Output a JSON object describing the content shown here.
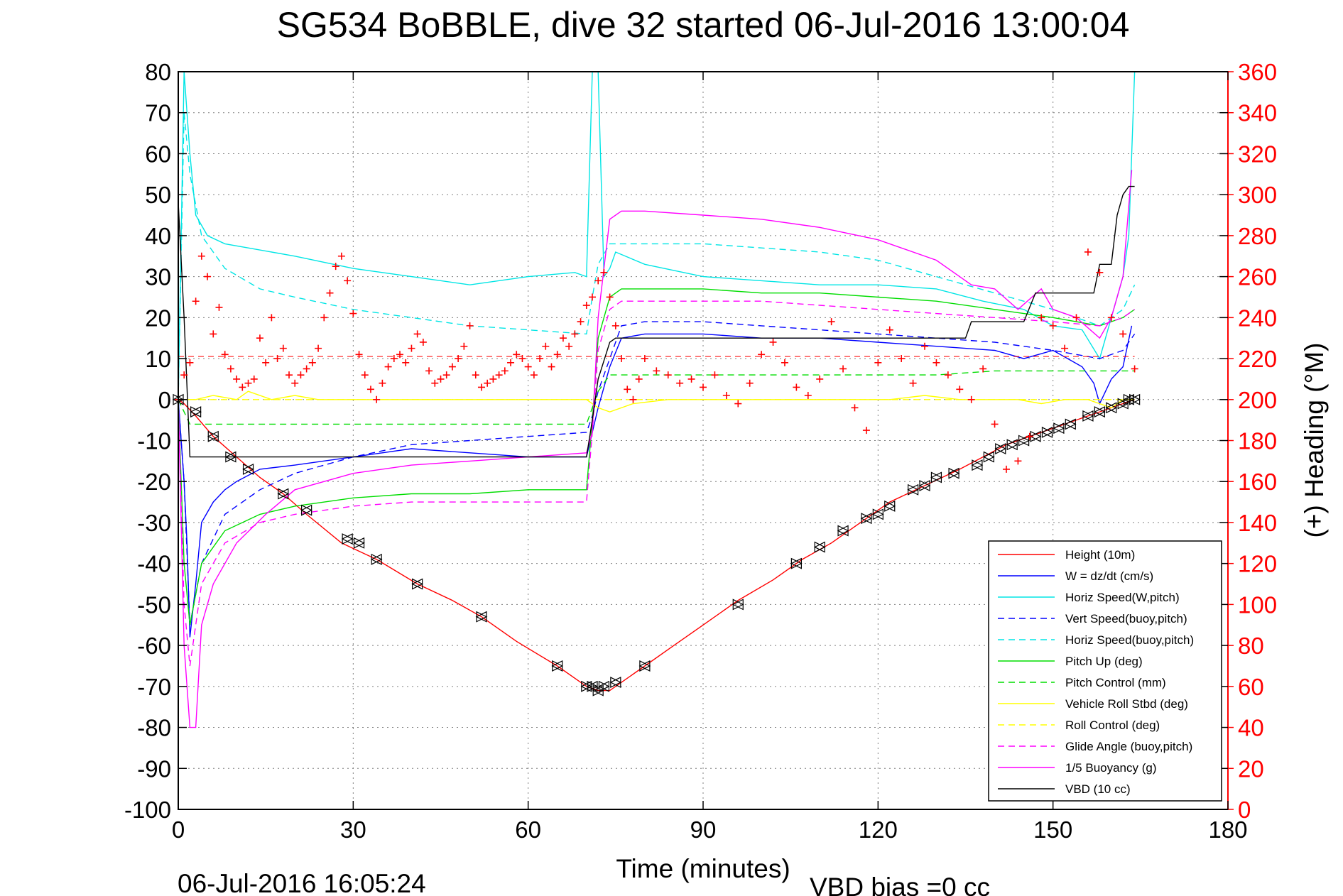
{
  "chart_data": {
    "type": "line",
    "title": "SG534 BoBBLE, dive 32 started 06-Jul-2016 13:00:04",
    "xlabel": "Time (minutes)",
    "ylabel_right": "(+) Heading (°M)",
    "footer_left": "06-Jul-2016 16:05:24",
    "footer_right": "VBD bias =0 cc",
    "xlim": [
      0,
      180
    ],
    "ylim": [
      -100,
      80
    ],
    "ylim_right": [
      0,
      360
    ],
    "x_ticks": [
      "0",
      "30",
      "60",
      "90",
      "120",
      "150",
      "180"
    ],
    "y_ticks": [
      "80",
      "70",
      "60",
      "50",
      "40",
      "30",
      "20",
      "10",
      "0",
      "-10",
      "-20",
      "-30",
      "-40",
      "-50",
      "-60",
      "-70",
      "-80",
      "-90",
      "-100"
    ],
    "y_ticks_right": [
      "360",
      "340",
      "320",
      "300",
      "280",
      "260",
      "240",
      "220",
      "200",
      "180",
      "160",
      "140",
      "120",
      "100",
      "80",
      "60",
      "40",
      "20",
      "0"
    ],
    "grid": true,
    "legend_position": "bottom-right",
    "series": [
      {
        "name": "Height (10m)",
        "color": "#ff0000",
        "style": "solid",
        "x": [
          0,
          1,
          3,
          6,
          10,
          14,
          18,
          22,
          28,
          34,
          41,
          47,
          52,
          58,
          65,
          70,
          72,
          74,
          76,
          80,
          85,
          90,
          96,
          102,
          107,
          112,
          118,
          122,
          128,
          134,
          138,
          142,
          146,
          150,
          154,
          158,
          162,
          164
        ],
        "y": [
          0,
          -1,
          -4,
          -9,
          -14,
          -19,
          -23,
          -28,
          -35,
          -39,
          -45,
          -49,
          -53,
          -59,
          -65,
          -70,
          -71,
          -71,
          -69,
          -65,
          -60,
          -55,
          -49,
          -44,
          -39,
          -35,
          -29,
          -25,
          -21,
          -17,
          -14,
          -11,
          -9,
          -7,
          -5,
          -3,
          -1,
          0
        ]
      },
      {
        "name": "W = dz/dt (cm/s)",
        "color": "#0000ff",
        "style": "solid",
        "x": [
          0,
          1,
          1.5,
          2,
          3,
          4,
          6,
          8,
          10,
          14,
          20,
          30,
          40,
          50,
          60,
          70,
          71,
          72,
          74,
          76,
          80,
          90,
          100,
          110,
          120,
          130,
          140,
          145,
          150,
          155,
          157,
          158,
          160,
          162,
          163.5
        ],
        "y": [
          0,
          -20,
          -35,
          -58,
          -45,
          -30,
          -25,
          -22,
          -20,
          -17,
          -16,
          -14,
          -12,
          -13,
          -14,
          -14,
          -8,
          -2,
          8,
          15,
          16,
          16,
          15,
          15,
          14,
          13,
          12,
          10,
          12,
          8,
          4,
          -1,
          5,
          8,
          18
        ]
      },
      {
        "name": "Horiz Speed(W,pitch)",
        "color": "#00e5e5",
        "style": "solid",
        "x": [
          0,
          1,
          2,
          3,
          5,
          8,
          12,
          20,
          30,
          40,
          50,
          60,
          68,
          70,
          71,
          72,
          73,
          74,
          75,
          80,
          90,
          100,
          110,
          120,
          130,
          138,
          145,
          150,
          155,
          158,
          160,
          162,
          163,
          164
        ],
        "y": [
          0,
          80,
          60,
          45,
          40,
          38,
          37,
          35,
          32,
          30,
          28,
          30,
          31,
          30,
          80,
          80,
          30,
          32,
          36,
          33,
          30,
          29,
          28,
          28,
          27,
          24,
          22,
          18,
          17,
          10,
          20,
          30,
          40,
          80
        ]
      },
      {
        "name": "Vert Speed(buoy,pitch)",
        "color": "#0000ff",
        "style": "dashed",
        "x": [
          0,
          1,
          2,
          4,
          8,
          14,
          20,
          30,
          40,
          50,
          60,
          70,
          71,
          72,
          74,
          76,
          80,
          90,
          100,
          110,
          120,
          130,
          140,
          150,
          158,
          162,
          164
        ],
        "y": [
          0,
          -20,
          -55,
          -40,
          -28,
          -22,
          -18,
          -14,
          -11,
          -10,
          -9,
          -8,
          -4,
          2,
          10,
          18,
          19,
          19,
          18,
          17,
          16,
          15,
          14,
          12,
          10,
          12,
          16
        ]
      },
      {
        "name": "Horiz Speed(buoy,pitch)",
        "color": "#00e5e5",
        "style": "dashed",
        "x": [
          0,
          1,
          2,
          4,
          8,
          14,
          20,
          30,
          40,
          50,
          60,
          70,
          71,
          72,
          74,
          76,
          80,
          90,
          100,
          110,
          120,
          130,
          140,
          150,
          158,
          162,
          164
        ],
        "y": [
          0,
          70,
          55,
          40,
          32,
          27,
          25,
          22,
          20,
          18,
          17,
          16,
          25,
          33,
          38,
          38,
          38,
          38,
          37,
          36,
          34,
          30,
          26,
          22,
          18,
          22,
          28
        ]
      },
      {
        "name": "Pitch Up (deg)",
        "color": "#00dd00",
        "style": "solid",
        "x": [
          0,
          1,
          2,
          4,
          8,
          14,
          20,
          30,
          40,
          50,
          60,
          70,
          71,
          72,
          74,
          76,
          80,
          90,
          100,
          110,
          120,
          130,
          140,
          150,
          158,
          162,
          164
        ],
        "y": [
          0,
          -40,
          -55,
          -40,
          -32,
          -28,
          -26,
          -24,
          -23,
          -23,
          -22,
          -22,
          -5,
          15,
          25,
          27,
          27,
          27,
          26,
          26,
          25,
          24,
          22,
          20,
          18,
          20,
          22
        ]
      },
      {
        "name": "Pitch Control (mm)",
        "color": "#00dd00",
        "style": "dashed",
        "x": [
          0,
          2,
          4,
          10,
          20,
          30,
          40,
          50,
          60,
          70,
          71,
          72,
          74,
          80,
          90,
          100,
          110,
          120,
          130,
          140,
          150,
          158,
          162,
          164
        ],
        "y": [
          0,
          -6,
          -6,
          -6,
          -6,
          -6,
          -6,
          -6,
          -6,
          -6,
          -2,
          2,
          6,
          6,
          6,
          6,
          6,
          6,
          6,
          7,
          7,
          7,
          7,
          7
        ]
      },
      {
        "name": "Vehicle Roll Stbd (deg)",
        "color": "#ffff00",
        "style": "solid",
        "x": [
          0,
          3,
          6,
          10,
          12,
          16,
          20,
          24,
          28,
          32,
          36,
          40,
          46,
          52,
          58,
          64,
          70,
          72,
          74,
          78,
          84,
          90,
          96,
          102,
          108,
          112,
          118,
          122,
          128,
          134,
          140,
          144,
          148,
          152,
          156,
          160,
          162,
          164
        ],
        "y": [
          0,
          0,
          1,
          0,
          2,
          0,
          1,
          0,
          0,
          0,
          0,
          0,
          0,
          0,
          0,
          0,
          0,
          -2,
          -3,
          -1,
          0,
          0,
          0,
          0,
          0,
          0,
          0,
          0,
          1,
          0,
          0,
          0,
          -1,
          0,
          0,
          -2,
          0,
          0
        ]
      },
      {
        "name": "Roll Control (deg)",
        "color": "#ffff00",
        "style": "dashed",
        "x": [
          0,
          20,
          40,
          60,
          70,
          80,
          100,
          120,
          140,
          150,
          160,
          164
        ],
        "y": [
          0,
          0,
          0,
          0,
          0,
          0,
          0,
          0,
          0,
          0,
          0,
          0
        ]
      },
      {
        "name": "Glide Angle (buoy,pitch)",
        "color": "#ff00ff",
        "style": "dashed",
        "x": [
          0,
          1,
          2,
          4,
          8,
          14,
          20,
          30,
          40,
          50,
          60,
          70,
          71,
          72,
          74,
          76,
          80,
          90,
          100,
          110,
          120,
          130,
          140,
          150,
          158,
          162,
          164
        ],
        "y": [
          0,
          -50,
          -65,
          -45,
          -35,
          -30,
          -28,
          -26,
          -25,
          -25,
          -25,
          -25,
          -8,
          12,
          22,
          24,
          24,
          24,
          24,
          23,
          22,
          21,
          20,
          19,
          18,
          20,
          22
        ]
      },
      {
        "name": "1/5 Buoyancy (g)",
        "color": "#ff00ff",
        "style": "solid",
        "x": [
          0,
          1,
          2,
          3,
          4,
          6,
          10,
          15,
          20,
          30,
          40,
          50,
          60,
          70,
          71,
          72,
          74,
          76,
          80,
          90,
          100,
          110,
          120,
          130,
          136,
          140,
          144,
          148,
          150,
          154,
          158,
          160,
          162,
          163.5
        ],
        "y": [
          0,
          -60,
          -80,
          -80,
          -55,
          -45,
          -35,
          -28,
          -22,
          -18,
          -16,
          -15,
          -14,
          -13,
          -8,
          20,
          44,
          46,
          46,
          45,
          44,
          42,
          39,
          34,
          28,
          27,
          22,
          27,
          22,
          20,
          15,
          20,
          30,
          56
        ]
      },
      {
        "name": "VBD (10 cc)",
        "color": "#000000",
        "style": "solid",
        "x": [
          0,
          1,
          2,
          3,
          10,
          20,
          40,
          60,
          70,
          71,
          72,
          74,
          75,
          80,
          100,
          120,
          135,
          136,
          140,
          145,
          147,
          150,
          157,
          158,
          160,
          161,
          162,
          163,
          164
        ],
        "y": [
          48,
          20,
          -14,
          -14,
          -14,
          -14,
          -14,
          -14,
          -14,
          -5,
          5,
          14,
          15,
          15,
          15,
          15,
          15,
          19,
          19,
          19,
          26,
          26,
          26,
          33,
          33,
          45,
          50,
          52,
          52
        ]
      }
    ],
    "heading": {
      "name": "Heading",
      "axis": "right",
      "color": "#ff0000",
      "marker": "+",
      "x": [
        0,
        1,
        2,
        3,
        4,
        5,
        6,
        7,
        8,
        9,
        10,
        11,
        12,
        13,
        14,
        15,
        16,
        17,
        18,
        19,
        20,
        21,
        22,
        23,
        24,
        25,
        26,
        27,
        28,
        29,
        30,
        31,
        32,
        33,
        34,
        35,
        36,
        37,
        38,
        39,
        40,
        41,
        42,
        43,
        44,
        45,
        46,
        47,
        48,
        49,
        50,
        51,
        52,
        53,
        54,
        55,
        56,
        57,
        58,
        59,
        60,
        61,
        62,
        63,
        64,
        65,
        66,
        67,
        68,
        69,
        70,
        71,
        72,
        73,
        74,
        75,
        76,
        77,
        78,
        79,
        80,
        82,
        84,
        86,
        88,
        90,
        92,
        94,
        96,
        98,
        100,
        102,
        104,
        106,
        108,
        110,
        112,
        114,
        116,
        118,
        120,
        122,
        124,
        126,
        128,
        130,
        132,
        134,
        136,
        138,
        140,
        142,
        144,
        146,
        148,
        150,
        152,
        154,
        156,
        158,
        160,
        162,
        164
      ],
      "y": [
        200,
        212,
        218,
        248,
        270,
        260,
        232,
        245,
        222,
        215,
        210,
        206,
        208,
        210,
        230,
        218,
        240,
        220,
        225,
        212,
        208,
        212,
        215,
        218,
        225,
        240,
        252,
        265,
        270,
        258,
        242,
        222,
        212,
        205,
        200,
        208,
        216,
        220,
        222,
        218,
        225,
        232,
        228,
        214,
        208,
        210,
        212,
        216,
        220,
        226,
        236,
        212,
        206,
        208,
        210,
        212,
        214,
        218,
        222,
        220,
        216,
        212,
        220,
        226,
        216,
        222,
        230,
        226,
        232,
        238,
        246,
        250,
        258,
        262,
        250,
        236,
        220,
        205,
        200,
        210,
        220,
        214,
        212,
        208,
        210,
        206,
        212,
        202,
        198,
        208,
        222,
        228,
        218,
        206,
        202,
        210,
        238,
        215,
        196,
        185,
        218,
        234,
        220,
        208,
        226,
        218,
        212,
        205,
        200,
        215,
        188,
        166,
        170,
        182,
        240,
        236,
        225,
        240,
        272,
        262,
        240,
        232,
        215
      ]
    },
    "height_markers": {
      "name": "Height sample markers",
      "color": "#000000",
      "x": [
        0,
        3,
        6,
        9,
        12,
        18,
        22,
        29,
        31,
        34,
        41,
        52,
        65,
        70,
        71,
        72,
        73,
        75,
        80,
        96,
        106,
        110,
        114,
        118,
        120,
        122,
        126,
        128,
        130,
        133,
        137,
        139,
        141,
        143,
        145,
        147,
        149,
        151,
        153,
        156,
        158,
        160,
        162,
        163,
        164
      ],
      "y": [
        0,
        -3,
        -9,
        -14,
        -17,
        -23,
        -27,
        -34,
        -35,
        -39,
        -45,
        -53,
        -65,
        -70,
        -70,
        -71,
        -70,
        -69,
        -65,
        -50,
        -40,
        -36,
        -32,
        -29,
        -28,
        -26,
        -22,
        -21,
        -19,
        -18,
        -16,
        -14,
        -12,
        -11,
        -10,
        -9,
        -8,
        -7,
        -6,
        -4,
        -3,
        -2,
        -1,
        0,
        0
      ]
    }
  }
}
